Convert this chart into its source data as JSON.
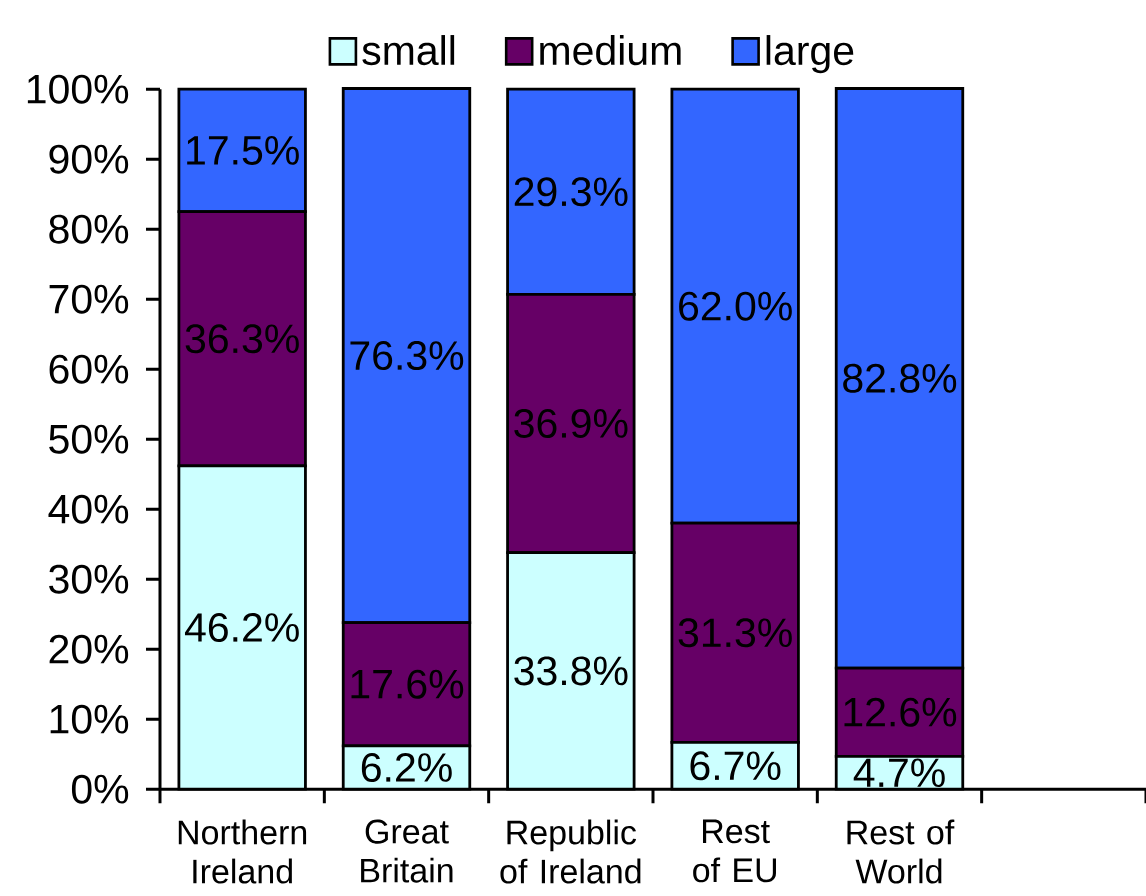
{
  "chart_data": {
    "type": "bar",
    "stacked": true,
    "categories": [
      "Northern Ireland",
      "Great Britain",
      "Republic of Ireland",
      "Rest of EU",
      "Rest of World",
      null
    ],
    "series": [
      {
        "name": "small",
        "color": "#ccffff",
        "values": [
          46.2,
          6.2,
          33.8,
          6.7,
          4.7,
          null
        ],
        "value_labels": [
          "46.2%",
          "6.2%",
          "33.8%",
          "6.7%",
          "4.7%",
          null
        ]
      },
      {
        "name": "medium",
        "color": "#660066",
        "values": [
          36.3,
          17.6,
          36.9,
          31.3,
          12.6,
          null
        ],
        "value_labels": [
          "36.3%",
          "17.6%",
          "36.9%",
          "31.3%",
          "12.6%",
          null
        ]
      },
      {
        "name": "large",
        "color": "#3366ff",
        "values": [
          17.5,
          76.3,
          29.3,
          62.0,
          82.8,
          null
        ],
        "value_labels": [
          "17.5%",
          "76.3%",
          "29.3%",
          "62.0%",
          "82.8%",
          null
        ]
      }
    ],
    "ylim": [
      0,
      100
    ],
    "yticks": [
      {
        "value": 0,
        "label": "0%"
      },
      {
        "value": 10,
        "label": "10%"
      },
      {
        "value": 20,
        "label": "20%"
      },
      {
        "value": 30,
        "label": "30%"
      },
      {
        "value": 40,
        "label": "40%"
      },
      {
        "value": 50,
        "label": "50%"
      },
      {
        "value": 60,
        "label": "60%"
      },
      {
        "value": 70,
        "label": "70%"
      },
      {
        "value": 80,
        "label": "80%"
      },
      {
        "value": 90,
        "label": "90%"
      },
      {
        "value": 100,
        "label": "100%"
      }
    ],
    "legend": "top"
  }
}
